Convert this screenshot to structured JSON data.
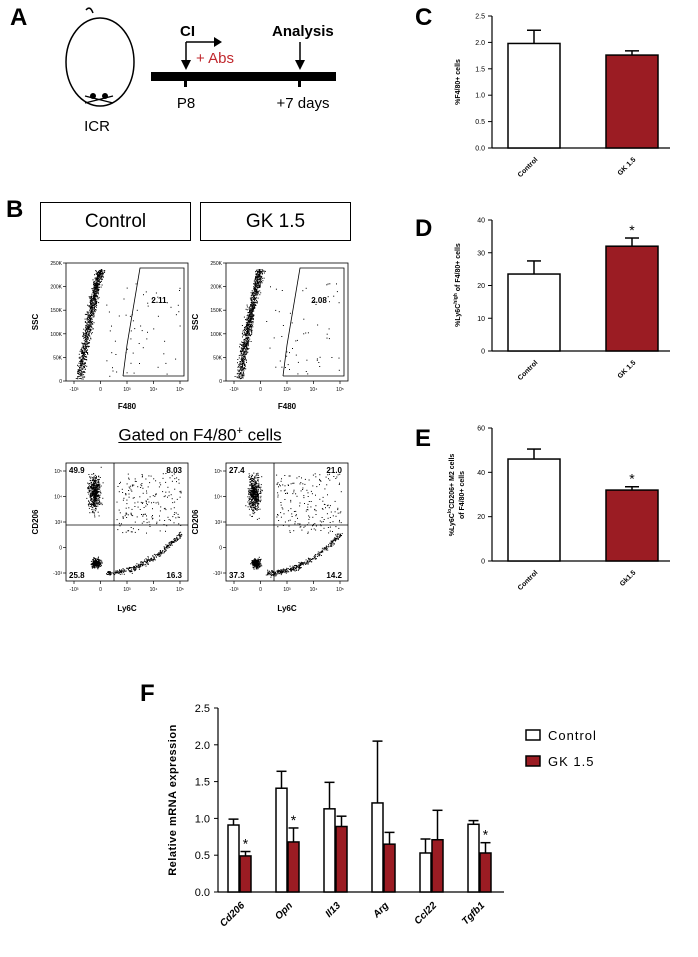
{
  "panel_letters": {
    "a": "A",
    "b": "B",
    "c": "C",
    "d": "D",
    "e": "E",
    "f": "F"
  },
  "colors": {
    "control": "#ffffff",
    "treatment": "#9b1c23",
    "axis": "#000000"
  },
  "panel_a": {
    "mouse_label": "ICR",
    "ci_label": "CI",
    "abs_label": "+ Abs",
    "analysis_label": "Analysis",
    "p8_label": "P8",
    "days_label": "+7 days"
  },
  "panel_b": {
    "group_headers": [
      "Control",
      "GK 1.5"
    ],
    "gate_caption": "Gated on F4/80",
    "gate_sup": "+",
    "gate_suffix": " cells",
    "top_plots": [
      {
        "gate_value": "2.11",
        "xlabel": "F480",
        "ylabel": "SSC"
      },
      {
        "gate_value": "2.08",
        "xlabel": "F480",
        "ylabel": "SSC"
      }
    ],
    "top_yticks": [
      "250K",
      "200K",
      "150K",
      "100K",
      "50K",
      "0"
    ],
    "top_xticks": [
      "-10³",
      "0",
      "10³",
      "10⁴",
      "10⁵"
    ],
    "quad_plots": [
      {
        "ul": "49.9",
        "ur": "8.03",
        "ll": "25.8",
        "lr": "16.3",
        "xlabel": "Ly6C",
        "ylabel": "CD206"
      },
      {
        "ul": "27.4",
        "ur": "21.0",
        "ll": "37.3",
        "lr": "14.2",
        "xlabel": "Ly6C",
        "ylabel": "CD206"
      }
    ],
    "quad_yticks": [
      "10⁵",
      "10⁴",
      "10³",
      "0",
      "-10³"
    ],
    "quad_xticks": [
      "-10³",
      "0",
      "10³",
      "10⁴",
      "10⁵"
    ]
  },
  "chart_data": [
    {
      "id": "C",
      "type": "bar",
      "categories": [
        "Control",
        "GK 1.5"
      ],
      "values": [
        1.98,
        1.76
      ],
      "errors": [
        0.25,
        0.08
      ],
      "ylabel": "%F4/80+ cells",
      "ylim": [
        0,
        2.5
      ],
      "yticks": [
        "0.0",
        "0.5",
        "1.0",
        "1.5",
        "2.0",
        "2.5"
      ],
      "significance": [
        "",
        ""
      ]
    },
    {
      "id": "D",
      "type": "bar",
      "categories": [
        "Control",
        "GK 1.5"
      ],
      "values": [
        23.5,
        32.0
      ],
      "errors": [
        4.0,
        2.5
      ],
      "ylabel_parts": [
        "%Ly6C",
        "high",
        " of F4/80+ cells"
      ],
      "ylim": [
        0,
        40
      ],
      "yticks": [
        "0",
        "10",
        "20",
        "30",
        "40"
      ],
      "significance": [
        "",
        "*"
      ]
    },
    {
      "id": "E",
      "type": "bar",
      "categories": [
        "Control",
        "Gk1.5"
      ],
      "values": [
        46.0,
        32.0
      ],
      "errors": [
        4.5,
        1.5
      ],
      "ylabel_parts": [
        "%Ly6C",
        "lo",
        "CD206+ M2 cells",
        "of F4/80+ cells"
      ],
      "ylim": [
        0,
        60
      ],
      "yticks": [
        "0",
        "20",
        "40",
        "60"
      ],
      "significance": [
        "",
        "*"
      ]
    },
    {
      "id": "F",
      "type": "bar",
      "categories": [
        "Cd206",
        "Opn",
        "Il13",
        "Arg",
        "Ccl22",
        "Tgfb1"
      ],
      "series": [
        {
          "name": "Control",
          "values": [
            0.91,
            1.41,
            1.13,
            1.21,
            0.53,
            0.92
          ],
          "errors": [
            0.08,
            0.23,
            0.36,
            0.84,
            0.19,
            0.05
          ]
        },
        {
          "name": "GK 1.5",
          "values": [
            0.49,
            0.68,
            0.89,
            0.65,
            0.71,
            0.53
          ],
          "errors": [
            0.06,
            0.19,
            0.14,
            0.16,
            0.4,
            0.14
          ]
        }
      ],
      "ylabel": "Relative mRNA expression",
      "ylim": [
        0,
        2.5
      ],
      "yticks": [
        "0.0",
        "0.5",
        "1.0",
        "1.5",
        "2.0",
        "2.5"
      ],
      "significance": [
        "*",
        "*",
        "",
        "",
        "",
        "*"
      ],
      "legend": [
        "Control",
        "GK 1.5"
      ]
    }
  ]
}
